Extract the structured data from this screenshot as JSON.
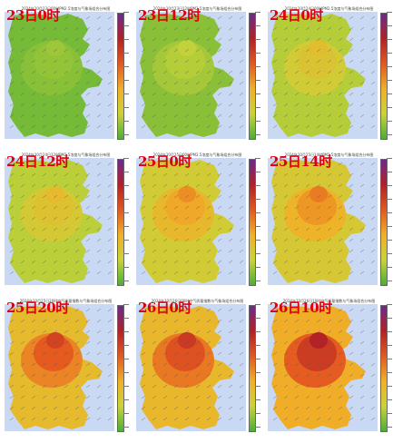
{
  "panels": [
    {
      "label": "23日0时",
      "title": "2024年10月23日00时PM2.5浓度与气象场组合分布图",
      "level": 0.15
    },
    {
      "label": "23日12时",
      "title": "2024年10月23日12时PM2.5浓度与气象场组合分布图",
      "level": 0.22
    },
    {
      "label": "24日0时",
      "title": "2024年10月24日00时PM2.5浓度与气象场组合分布图",
      "level": 0.38
    },
    {
      "label": "24日12时",
      "title": "2024年10月24日12时PM2.5浓度与气象场组合分布图",
      "level": 0.4
    },
    {
      "label": "25日0时",
      "title": "2024年10月25日00时PM2.5浓度与气象场组合分布图",
      "level": 0.55
    },
    {
      "label": "25日14时",
      "title": "2024年10月25日14时PM2.5浓度与气象场组合分布图",
      "level": 0.6
    },
    {
      "label": "25日20时",
      "title": "2024年10月25日20时空气质量指数与气象场组合分布图",
      "level": 0.78
    },
    {
      "label": "26日0时",
      "title": "2024年10月26日00时空气质量指数与气象场组合分布图",
      "level": 0.82
    },
    {
      "label": "26日10时",
      "title": "2024年10月26日10时空气质量指数与气象场组合分布图",
      "level": 0.92
    }
  ],
  "colors": {
    "good": "#4caf35",
    "light": "#c9d33a",
    "moderate": "#f0b028",
    "heavy": "#e4571f",
    "severe": "#b32026",
    "sea": "#c9d9f4",
    "label": "#e0000a"
  }
}
